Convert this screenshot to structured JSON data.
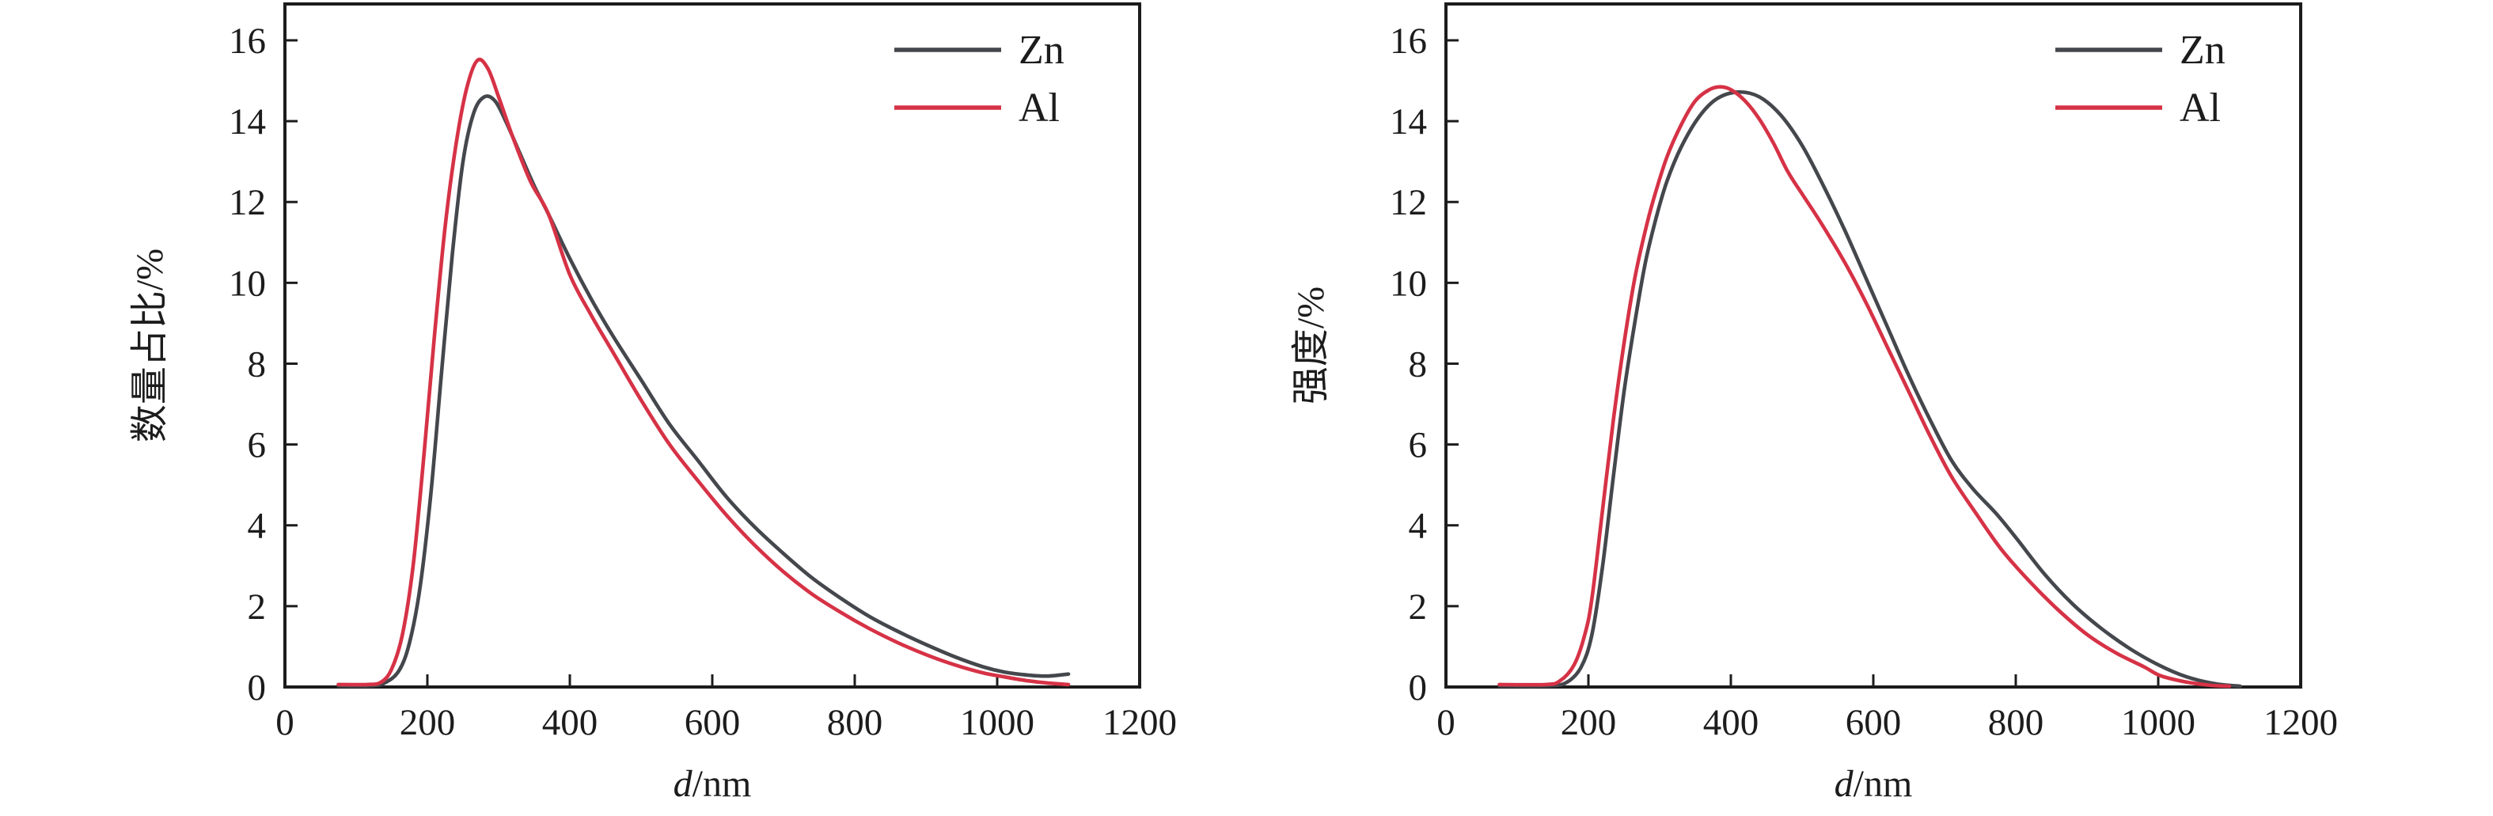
{
  "figure": {
    "background": "#ffffff",
    "axis_color": "#1c1c1c",
    "panel_count": 2
  },
  "chart_data": [
    {
      "type": "line",
      "panel": "left",
      "title": "",
      "xlabel": "d/nm",
      "xlabel_variable": "d",
      "xlabel_unit": "/nm",
      "ylabel": "数量占比/%",
      "xlim": [
        0,
        1200
      ],
      "ylim": [
        0,
        16.9
      ],
      "x_ticks": [
        0,
        200,
        400,
        600,
        800,
        1000,
        1200
      ],
      "y_ticks": [
        0,
        2,
        4,
        6,
        8,
        10,
        12,
        14,
        16
      ],
      "grid": false,
      "legend_position": "top-right",
      "series": [
        {
          "name": "Zn",
          "color": "#44474c",
          "points": [
            [
              75,
              0.03
            ],
            [
              120,
              0.03
            ],
            [
              140,
              0.1
            ],
            [
              160,
              0.4
            ],
            [
              175,
              1.1
            ],
            [
              190,
              2.5
            ],
            [
              205,
              4.8
            ],
            [
              220,
              7.8
            ],
            [
              235,
              10.7
            ],
            [
              250,
              13.0
            ],
            [
              265,
              14.2
            ],
            [
              280,
              14.6
            ],
            [
              295,
              14.5
            ],
            [
              310,
              14.0
            ],
            [
              330,
              13.2
            ],
            [
              350,
              12.4
            ],
            [
              370,
              11.7
            ],
            [
              400,
              10.6
            ],
            [
              430,
              9.6
            ],
            [
              460,
              8.7
            ],
            [
              500,
              7.6
            ],
            [
              540,
              6.5
            ],
            [
              580,
              5.6
            ],
            [
              620,
              4.7
            ],
            [
              660,
              3.95
            ],
            [
              700,
              3.3
            ],
            [
              740,
              2.7
            ],
            [
              780,
              2.2
            ],
            [
              820,
              1.75
            ],
            [
              860,
              1.38
            ],
            [
              900,
              1.05
            ],
            [
              940,
              0.75
            ],
            [
              980,
              0.5
            ],
            [
              1010,
              0.37
            ],
            [
              1040,
              0.3
            ],
            [
              1070,
              0.27
            ],
            [
              1100,
              0.32
            ]
          ]
        },
        {
          "name": "Al",
          "color": "#d63246",
          "points": [
            [
              75,
              0.06
            ],
            [
              115,
              0.06
            ],
            [
              135,
              0.12
            ],
            [
              150,
              0.45
            ],
            [
              165,
              1.3
            ],
            [
              180,
              3.0
            ],
            [
              195,
              5.7
            ],
            [
              210,
              8.7
            ],
            [
              225,
              11.4
            ],
            [
              240,
              13.4
            ],
            [
              255,
              14.8
            ],
            [
              270,
              15.5
            ],
            [
              285,
              15.3
            ],
            [
              300,
              14.6
            ],
            [
              320,
              13.6
            ],
            [
              345,
              12.5
            ],
            [
              370,
              11.7
            ],
            [
              400,
              10.2
            ],
            [
              430,
              9.2
            ],
            [
              460,
              8.3
            ],
            [
              500,
              7.1
            ],
            [
              540,
              6.0
            ],
            [
              580,
              5.1
            ],
            [
              620,
              4.25
            ],
            [
              660,
              3.5
            ],
            [
              700,
              2.85
            ],
            [
              740,
              2.3
            ],
            [
              780,
              1.85
            ],
            [
              820,
              1.45
            ],
            [
              860,
              1.1
            ],
            [
              900,
              0.8
            ],
            [
              940,
              0.55
            ],
            [
              980,
              0.35
            ],
            [
              1010,
              0.25
            ],
            [
              1040,
              0.16
            ],
            [
              1070,
              0.1
            ],
            [
              1100,
              0.06
            ]
          ]
        }
      ]
    },
    {
      "type": "line",
      "panel": "right",
      "title": "",
      "xlabel": "d/nm",
      "xlabel_variable": "d",
      "xlabel_unit": "/nm",
      "ylabel": "强度/%",
      "xlim": [
        0,
        1200
      ],
      "ylim": [
        0,
        16.9
      ],
      "x_ticks": [
        0,
        200,
        400,
        600,
        800,
        1000,
        1200
      ],
      "y_ticks": [
        0,
        2,
        4,
        6,
        8,
        10,
        12,
        14,
        16
      ],
      "grid": false,
      "legend_position": "top-right",
      "series": [
        {
          "name": "Zn",
          "color": "#44474c",
          "points": [
            [
              75,
              0.03
            ],
            [
              145,
              0.03
            ],
            [
              170,
              0.12
            ],
            [
              190,
              0.5
            ],
            [
              205,
              1.3
            ],
            [
              220,
              3.0
            ],
            [
              235,
              5.2
            ],
            [
              250,
              7.3
            ],
            [
              265,
              9.0
            ],
            [
              280,
              10.5
            ],
            [
              295,
              11.6
            ],
            [
              310,
              12.5
            ],
            [
              330,
              13.35
            ],
            [
              355,
              14.1
            ],
            [
              380,
              14.55
            ],
            [
              410,
              14.72
            ],
            [
              440,
              14.6
            ],
            [
              470,
              14.15
            ],
            [
              500,
              13.4
            ],
            [
              530,
              12.4
            ],
            [
              560,
              11.3
            ],
            [
              590,
              10.1
            ],
            [
              620,
              8.9
            ],
            [
              650,
              7.7
            ],
            [
              680,
              6.6
            ],
            [
              710,
              5.6
            ],
            [
              740,
              4.9
            ],
            [
              772,
              4.3
            ],
            [
              800,
              3.7
            ],
            [
              840,
              2.8
            ],
            [
              880,
              2.05
            ],
            [
              920,
              1.45
            ],
            [
              960,
              0.95
            ],
            [
              1000,
              0.55
            ],
            [
              1040,
              0.25
            ],
            [
              1080,
              0.08
            ],
            [
              1115,
              0.02
            ]
          ]
        },
        {
          "name": "Al",
          "color": "#d63246",
          "points": [
            [
              75,
              0.06
            ],
            [
              140,
              0.06
            ],
            [
              160,
              0.15
            ],
            [
              180,
              0.55
            ],
            [
              195,
              1.3
            ],
            [
              205,
              2.2
            ],
            [
              220,
              4.4
            ],
            [
              235,
              6.6
            ],
            [
              250,
              8.5
            ],
            [
              265,
              10.1
            ],
            [
              280,
              11.3
            ],
            [
              292,
              12.1
            ],
            [
              310,
              13.1
            ],
            [
              330,
              13.9
            ],
            [
              350,
              14.5
            ],
            [
              370,
              14.78
            ],
            [
              385,
              14.85
            ],
            [
              400,
              14.78
            ],
            [
              420,
              14.5
            ],
            [
              440,
              14.05
            ],
            [
              460,
              13.45
            ],
            [
              480,
              12.75
            ],
            [
              500,
              12.2
            ],
            [
              526,
              11.5
            ],
            [
              560,
              10.5
            ],
            [
              590,
              9.5
            ],
            [
              620,
              8.4
            ],
            [
              650,
              7.3
            ],
            [
              680,
              6.2
            ],
            [
              710,
              5.2
            ],
            [
              744,
              4.3
            ],
            [
              780,
              3.4
            ],
            [
              820,
              2.6
            ],
            [
              860,
              1.9
            ],
            [
              900,
              1.3
            ],
            [
              940,
              0.85
            ],
            [
              980,
              0.5
            ],
            [
              1003,
              0.28
            ],
            [
              1040,
              0.12
            ],
            [
              1075,
              0.04
            ],
            [
              1100,
              0.02
            ]
          ]
        }
      ]
    }
  ]
}
